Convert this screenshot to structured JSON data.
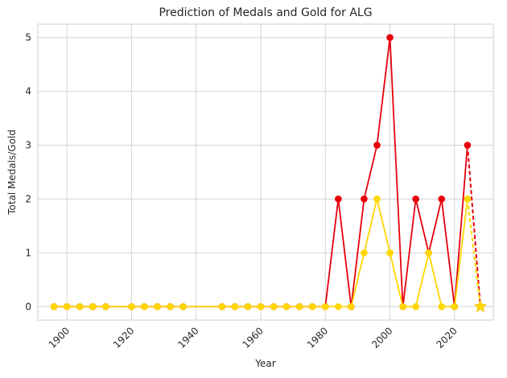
{
  "chart_data": {
    "type": "line",
    "title": "Prediction of Medals and Gold for ALG",
    "xlabel": "Year",
    "ylabel": "Total Medals/Gold",
    "xlim": [
      1891,
      2032
    ],
    "ylim": [
      -0.25,
      5.25
    ],
    "xticks": [
      1900,
      1920,
      1940,
      1960,
      1980,
      2000,
      2020
    ],
    "yticks": [
      0,
      1,
      2,
      3,
      4,
      5
    ],
    "grid": true,
    "series": [
      {
        "color": "#e8000b",
        "marker": "circle",
        "x": [
          1896,
          1900,
          1904,
          1908,
          1912,
          1920,
          1924,
          1928,
          1932,
          1936,
          1948,
          1952,
          1956,
          1960,
          1964,
          1968,
          1972,
          1976,
          1980,
          1984,
          1988,
          1992,
          1996,
          2000,
          2004,
          2008,
          2012,
          2016,
          2020,
          2024
        ],
        "y": [
          0,
          0,
          0,
          0,
          0,
          0,
          0,
          0,
          0,
          0,
          0,
          0,
          0,
          0,
          0,
          0,
          0,
          0,
          0,
          2,
          0,
          2,
          3,
          5,
          0,
          2,
          1,
          2,
          0,
          3
        ]
      },
      {
        "color": "#ffd700",
        "marker": "circle",
        "x": [
          1896,
          1900,
          1904,
          1908,
          1912,
          1920,
          1924,
          1928,
          1932,
          1936,
          1948,
          1952,
          1956,
          1960,
          1964,
          1968,
          1972,
          1976,
          1980,
          1984,
          1988,
          1992,
          1996,
          2000,
          2004,
          2008,
          2012,
          2016,
          2020,
          2024
        ],
        "y": [
          0,
          0,
          0,
          0,
          0,
          0,
          0,
          0,
          0,
          0,
          0,
          0,
          0,
          0,
          0,
          0,
          0,
          0,
          0,
          0,
          0,
          1,
          2,
          1,
          0,
          0,
          1,
          0,
          0,
          2
        ]
      }
    ],
    "predictions": [
      {
        "color": "#e8000b",
        "style": "dashed",
        "x": [
          2024,
          2028
        ],
        "y": [
          3,
          0
        ],
        "end_marker": "star"
      },
      {
        "color": "#ffd700",
        "style": "dashed",
        "x": [
          2024,
          2028
        ],
        "y": [
          2,
          0
        ],
        "end_marker": "star"
      }
    ]
  }
}
